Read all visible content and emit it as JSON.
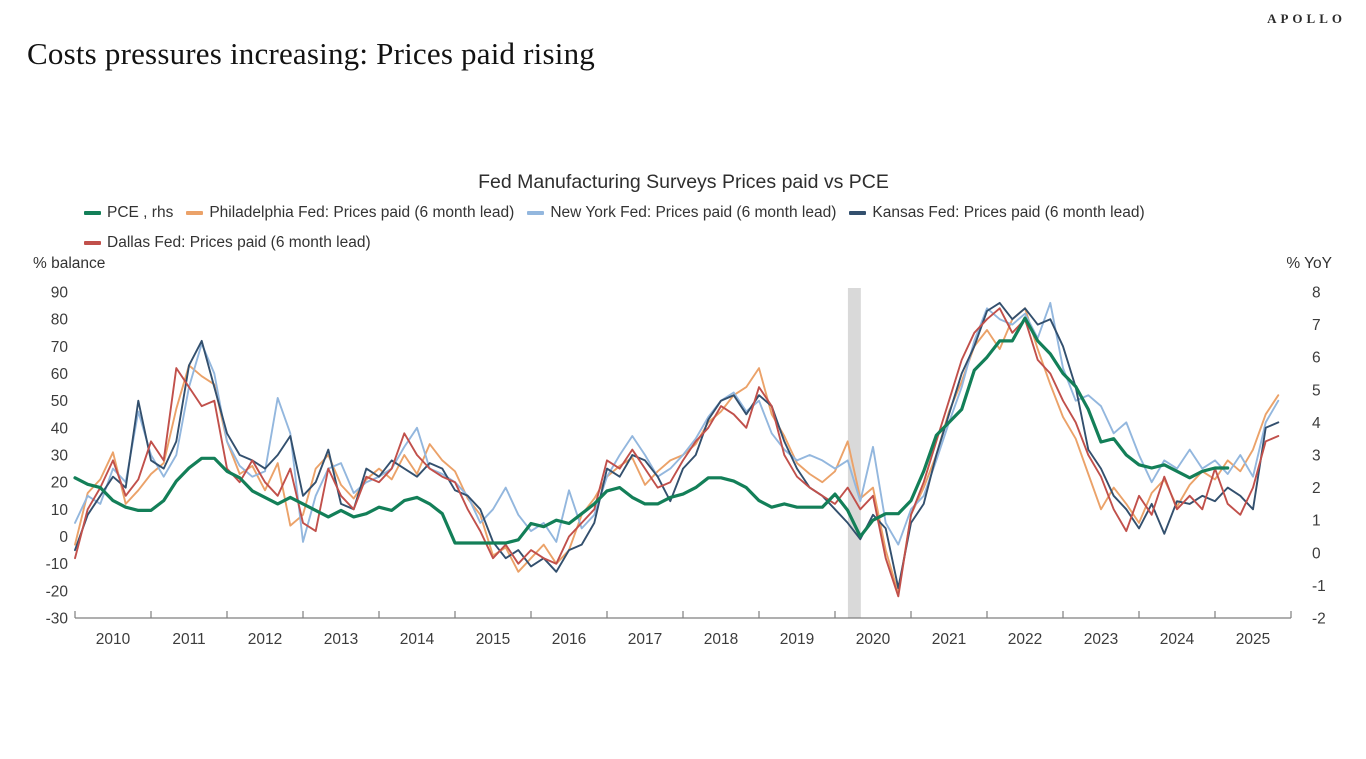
{
  "page": {
    "brand": "APOLLO",
    "title": "Costs pressures increasing: Prices paid rising"
  },
  "chart_data": {
    "type": "line",
    "title": "Fed Manufacturing Surveys Prices paid vs PCE",
    "grid": false,
    "legend_position": "top-left",
    "left_axis": {
      "label": "% balance",
      "min": -30,
      "max": 90,
      "ticks": [
        90,
        80,
        70,
        60,
        50,
        40,
        30,
        20,
        10,
        0,
        -10,
        -20,
        -30
      ]
    },
    "right_axis": {
      "label": "% YoY",
      "min": -2,
      "max": 8,
      "ticks": [
        8,
        7,
        6,
        5,
        4,
        3,
        2,
        1,
        0,
        -1,
        -2
      ]
    },
    "x_axis": {
      "start_year": 2010,
      "end_year": 2026,
      "tick_labels": [
        "2010",
        "2011",
        "2012",
        "2013",
        "2014",
        "2015",
        "2016",
        "2017",
        "2018",
        "2019",
        "2020",
        "2021",
        "2022",
        "2023",
        "2024",
        "2025"
      ]
    },
    "recession_band": {
      "from": 2020.17,
      "to": 2020.34,
      "color": "#D9D9D9"
    },
    "x_start": 2010.0,
    "x_step_years": 0.1666667,
    "series": [
      {
        "id": "pce",
        "name": "PCE , rhs",
        "axis": "right",
        "color": "#137F58",
        "width": 3.2,
        "values": [
          2.3,
          2.1,
          2.0,
          1.6,
          1.4,
          1.3,
          1.3,
          1.6,
          2.2,
          2.6,
          2.9,
          2.9,
          2.5,
          2.3,
          1.9,
          1.7,
          1.5,
          1.7,
          1.5,
          1.3,
          1.1,
          1.3,
          1.1,
          1.2,
          1.4,
          1.3,
          1.6,
          1.7,
          1.5,
          1.2,
          0.3,
          0.3,
          0.3,
          0.3,
          0.3,
          0.4,
          0.9,
          0.8,
          1.0,
          0.9,
          1.2,
          1.5,
          1.9,
          2.0,
          1.7,
          1.5,
          1.5,
          1.7,
          1.8,
          2.0,
          2.3,
          2.3,
          2.2,
          2.0,
          1.6,
          1.4,
          1.5,
          1.4,
          1.4,
          1.4,
          1.8,
          1.3,
          0.5,
          1.0,
          1.2,
          1.2,
          1.6,
          2.5,
          3.6,
          4.0,
          4.4,
          5.6,
          6.0,
          6.5,
          6.5,
          7.2,
          6.5,
          6.1,
          5.5,
          5.1,
          4.4,
          3.4,
          3.5,
          3.0,
          2.7,
          2.6,
          2.7,
          2.5,
          2.3,
          2.5,
          2.6,
          2.6
        ]
      },
      {
        "id": "philadelphia",
        "name": "Philadelphia Fed: Prices paid (6 month lead)",
        "axis": "left",
        "color": "#EBA269",
        "width": 1.9,
        "values": [
          -3,
          16,
          21,
          31,
          12,
          17,
          23,
          27,
          47,
          63,
          59,
          56,
          35,
          23,
          26,
          17,
          27,
          4,
          8,
          25,
          30,
          19,
          14,
          21,
          25,
          21,
          30,
          23,
          34,
          28,
          24,
          14,
          8,
          -7,
          -4,
          -13,
          -8,
          -3,
          -10,
          -5,
          8,
          14,
          22,
          26,
          29,
          19,
          24,
          28,
          30,
          34,
          42,
          46,
          52,
          55,
          62,
          45,
          37,
          27,
          23,
          20,
          24,
          35,
          14,
          18,
          -5,
          -21,
          8,
          18,
          30,
          46,
          57,
          70,
          76,
          69,
          80,
          84,
          69,
          56,
          44,
          36,
          23,
          10,
          18,
          12,
          5,
          16,
          21,
          11,
          19,
          24,
          21,
          28,
          24,
          32,
          45,
          52
        ]
      },
      {
        "id": "new-york",
        "name": "New York Fed: Prices paid (6 month lead)",
        "axis": "left",
        "color": "#93B7DE",
        "width": 1.9,
        "values": [
          5,
          15,
          12,
          25,
          20,
          46,
          30,
          22,
          30,
          55,
          71,
          60,
          35,
          26,
          22,
          24,
          51,
          38,
          -2,
          15,
          25,
          27,
          16,
          20,
          22,
          25,
          33,
          40,
          25,
          23,
          20,
          15,
          5,
          10,
          18,
          8,
          2,
          5,
          -2,
          17,
          3,
          8,
          22,
          30,
          37,
          30,
          22,
          25,
          30,
          36,
          44,
          50,
          53,
          46,
          50,
          38,
          32,
          28,
          30,
          28,
          25,
          28,
          13,
          33,
          5,
          -3,
          10,
          15,
          28,
          42,
          55,
          72,
          84,
          80,
          78,
          82,
          73,
          86,
          62,
          50,
          52,
          48,
          38,
          42,
          30,
          20,
          28,
          25,
          32,
          25,
          28,
          23,
          30,
          22,
          42,
          50
        ]
      },
      {
        "id": "kansas",
        "name": "Kansas Fed: Prices paid (6 month lead)",
        "axis": "left",
        "color": "#33506E",
        "width": 1.9,
        "values": [
          -5,
          8,
          15,
          22,
          18,
          50,
          28,
          25,
          35,
          63,
          72,
          55,
          38,
          30,
          28,
          25,
          30,
          37,
          15,
          20,
          32,
          12,
          10,
          25,
          22,
          28,
          25,
          22,
          27,
          25,
          17,
          15,
          10,
          -2,
          -8,
          -5,
          -11,
          -8,
          -13,
          -5,
          -3,
          5,
          25,
          22,
          30,
          28,
          22,
          13,
          25,
          30,
          43,
          50,
          52,
          45,
          52,
          48,
          35,
          25,
          18,
          15,
          10,
          5,
          -1,
          8,
          3,
          -19,
          5,
          12,
          30,
          45,
          60,
          70,
          83,
          86,
          80,
          84,
          78,
          80,
          70,
          55,
          32,
          25,
          15,
          10,
          3,
          12,
          1,
          13,
          12,
          15,
          13,
          18,
          15,
          10,
          40,
          42
        ]
      },
      {
        "id": "dallas",
        "name": "Dallas Fed: Prices paid (6 month lead)",
        "axis": "left",
        "color": "#C1504B",
        "width": 1.9,
        "values": [
          -8,
          10,
          18,
          28,
          15,
          21,
          35,
          28,
          62,
          55,
          48,
          50,
          25,
          20,
          28,
          20,
          15,
          25,
          5,
          2,
          25,
          15,
          10,
          22,
          20,
          25,
          38,
          30,
          25,
          22,
          20,
          10,
          2,
          -8,
          -3,
          -10,
          -5,
          -8,
          -10,
          0,
          5,
          10,
          28,
          25,
          32,
          25,
          18,
          20,
          28,
          35,
          40,
          48,
          45,
          40,
          55,
          48,
          30,
          22,
          18,
          15,
          12,
          18,
          10,
          15,
          -8,
          -22,
          8,
          20,
          35,
          50,
          65,
          75,
          80,
          84,
          75,
          80,
          65,
          60,
          50,
          42,
          30,
          22,
          10,
          2,
          15,
          8,
          22,
          10,
          15,
          10,
          25,
          12,
          8,
          18,
          35,
          37
        ]
      }
    ]
  }
}
